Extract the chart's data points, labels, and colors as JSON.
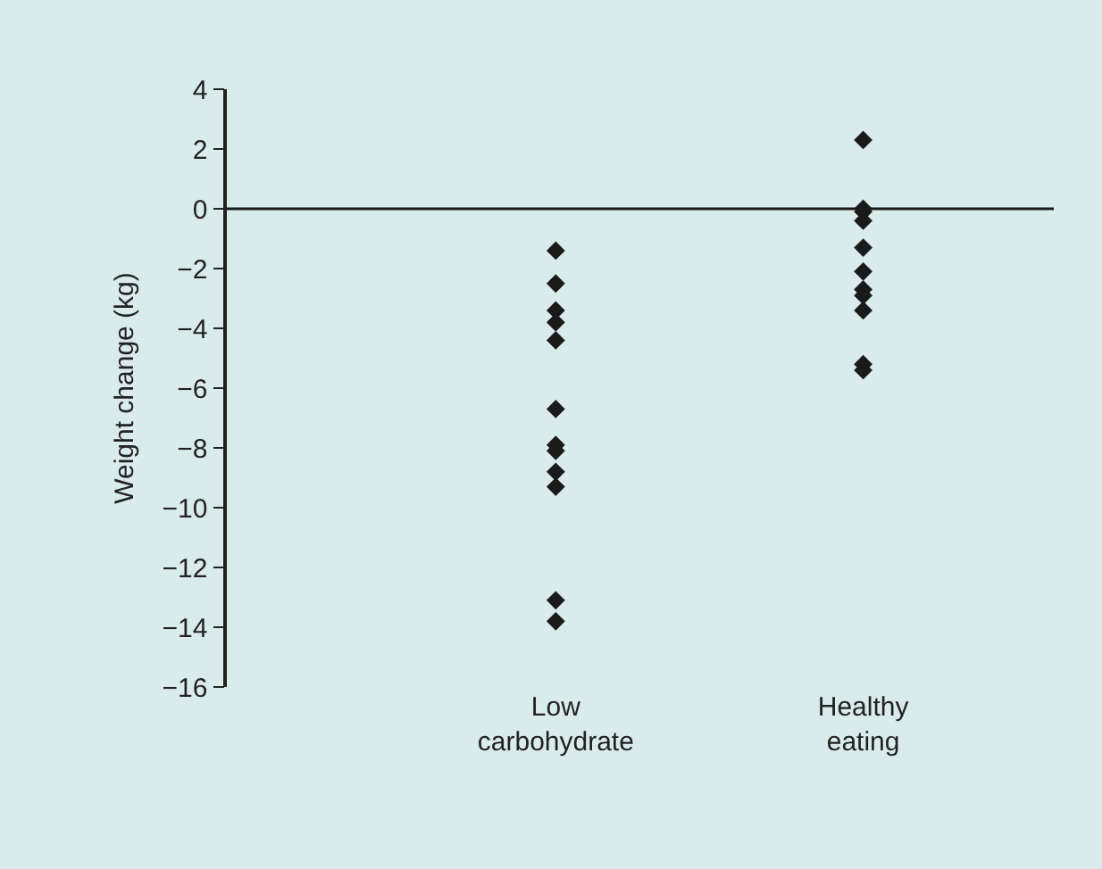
{
  "chart_data": {
    "type": "scatter",
    "ylabel": "Weight change (kg)",
    "categories": [
      "Low carbohydrate",
      "Healthy eating"
    ],
    "series": [
      {
        "color": "#1a1a1a",
        "x": [
          "Low carbohydrate",
          "Low carbohydrate",
          "Low carbohydrate",
          "Low carbohydrate",
          "Low carbohydrate",
          "Low carbohydrate",
          "Low carbohydrate",
          "Low carbohydrate",
          "Low carbohydrate",
          "Low carbohydrate",
          "Low carbohydrate",
          "Low carbohydrate"
        ],
        "values": [
          -1.4,
          -2.5,
          -3.4,
          -3.8,
          -4.4,
          -6.7,
          -7.9,
          -8.1,
          -8.8,
          -9.3,
          -13.1,
          -13.8
        ]
      },
      {
        "color": "#1a1a1a",
        "x": [
          "Healthy eating",
          "Healthy eating",
          "Healthy eating",
          "Healthy eating",
          "Healthy eating",
          "Healthy eating",
          "Healthy eating",
          "Healthy eating",
          "Healthy eating",
          "Healthy eating",
          "Healthy eating"
        ],
        "values": [
          2.3,
          0,
          -0.1,
          -0.4,
          -1.3,
          -2.1,
          -2.7,
          -2.9,
          -3.4,
          -5.2,
          -5.4
        ]
      }
    ],
    "ylim": [
      -16,
      4
    ],
    "yticks": [
      -16,
      -14,
      -12,
      -10,
      -8,
      -6,
      -4,
      -2,
      0,
      2,
      4
    ],
    "ref_lines": [
      {
        "axis": "y",
        "value": 0,
        "color": "#1a1a1a"
      }
    ],
    "marker": "diamond",
    "grid": false
  }
}
